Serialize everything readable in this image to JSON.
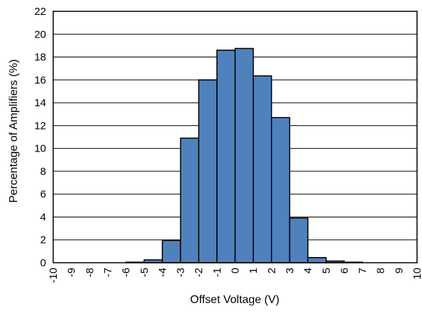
{
  "chart_data": {
    "type": "bar",
    "xlabel": "Offset Voltage (V)",
    "ylabel": "Percentage of Amplifiers (%)",
    "ylim": [
      0,
      22
    ],
    "yticks": [
      0,
      2,
      4,
      6,
      8,
      10,
      12,
      14,
      16,
      18,
      20,
      22
    ],
    "xlim": [
      -10,
      10
    ],
    "xticks": [
      -10,
      -9,
      -8,
      -7,
      -6,
      -5,
      -4,
      -3,
      -2,
      -1,
      0,
      1,
      2,
      3,
      4,
      5,
      6,
      7,
      8,
      9,
      10
    ],
    "grid": "horizontal",
    "bar_color": "#4F81BD",
    "bar_edge_color": "#000000",
    "bin_width": 1,
    "bins": [
      {
        "x": -5.5,
        "value": 0.05
      },
      {
        "x": -4.5,
        "value": 0.25
      },
      {
        "x": -3.5,
        "value": 1.95
      },
      {
        "x": -2.5,
        "value": 10.9
      },
      {
        "x": -1.5,
        "value": 16.0
      },
      {
        "x": -0.5,
        "value": 18.6
      },
      {
        "x": 0.5,
        "value": 18.75
      },
      {
        "x": 1.5,
        "value": 16.35
      },
      {
        "x": 2.5,
        "value": 12.7
      },
      {
        "x": 3.5,
        "value": 3.9
      },
      {
        "x": 4.5,
        "value": 0.45
      },
      {
        "x": 5.5,
        "value": 0.15
      },
      {
        "x": 6.5,
        "value": 0.05
      }
    ]
  }
}
